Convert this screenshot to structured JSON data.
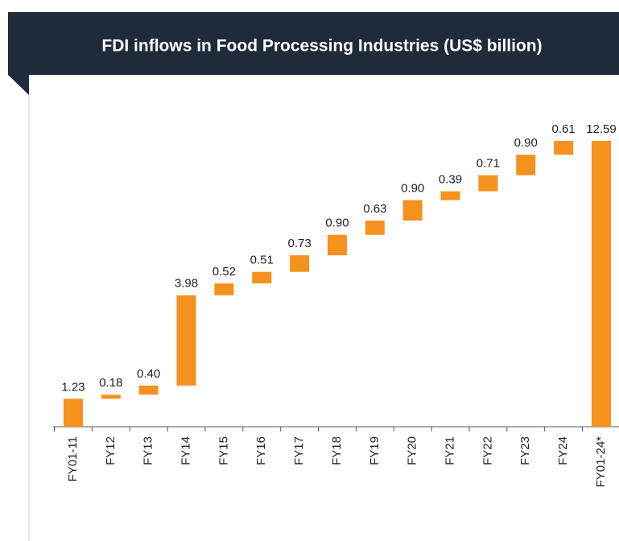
{
  "chart_data": {
    "type": "waterfall",
    "title": "FDI inflows in Food Processing Industries (US$ billion)",
    "categories": [
      "FY01-11",
      "FY12",
      "FY13",
      "FY14",
      "FY15",
      "FY16",
      "FY17",
      "FY18",
      "FY19",
      "FY20",
      "FY21",
      "FY22",
      "FY23",
      "FY24",
      "FY01-24*"
    ],
    "values": [
      1.23,
      0.18,
      0.4,
      3.98,
      0.52,
      0.51,
      0.73,
      0.9,
      0.63,
      0.9,
      0.39,
      0.71,
      0.9,
      0.61,
      12.59
    ],
    "value_labels": [
      "1.23",
      "0.18",
      "0.40",
      "3.98",
      "0.52",
      "0.51",
      "0.73",
      "0.90",
      "0.63",
      "0.90",
      "0.39",
      "0.71",
      "0.90",
      "0.61",
      "12.59"
    ],
    "total_last": true,
    "color": "#f5921e"
  }
}
